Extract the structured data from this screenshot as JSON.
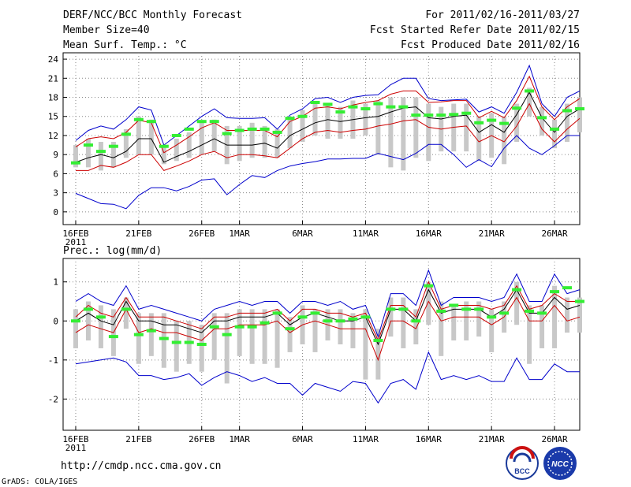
{
  "header": {
    "title": "DERF/NCC/BCC Monthly Forecast",
    "member_size": "Member Size=40",
    "variable": "Mean Surf. Temp.: °C",
    "period": "For 2011/02/16-2011/03/27",
    "started": "Fcst Started Refer Date 2011/02/15",
    "produced": "Fcst Produced Date 2011/02/16"
  },
  "footer": {
    "url": "http://cmdp.ncc.cma.gov.cn",
    "grads": "GrADS: COLA/IGES",
    "logo_bcc": "BCC",
    "logo_ncc": "NCC"
  },
  "colors": {
    "max_min": "#0000cc",
    "std": "#cc0000",
    "mean": "#000000",
    "box": "#c8c8c8",
    "marker": "#33ee33",
    "grid": "#888888"
  },
  "chart_data": [
    {
      "type": "line",
      "title": "Mean Surf. Temp.: °C",
      "x_tick_labels": [
        "16FEB",
        "21FEB",
        "26FEB",
        "1MAR",
        "6MAR",
        "11MAR",
        "16MAR",
        "21MAR",
        "26MAR"
      ],
      "x_tick_days": [
        0,
        5,
        10,
        13,
        18,
        23,
        28,
        33,
        38
      ],
      "x_year_label": "2011",
      "xlim": [
        -1,
        40
      ],
      "ylim": [
        -2,
        25
      ],
      "y_ticks": [
        0,
        3,
        6,
        9,
        12,
        15,
        18,
        21,
        24
      ],
      "series": [
        {
          "name": "max",
          "values": [
            11.2,
            12.8,
            13.5,
            13.0,
            14.5,
            16.5,
            16.0,
            10.5,
            12.0,
            13.5,
            15.0,
            16.2,
            14.8,
            14.7,
            14.7,
            14.8,
            13.0,
            15.2,
            16.2,
            17.8,
            18.0,
            17.2,
            18.0,
            18.3,
            18.4,
            20.0,
            21.0,
            21.0,
            17.8,
            17.5,
            17.6,
            17.7,
            15.7,
            16.5,
            15.5,
            18.8,
            23.0,
            17.0,
            15.0,
            18.0,
            19.0
          ]
        },
        {
          "name": "upper",
          "values": [
            10.2,
            11.5,
            11.8,
            11.5,
            12.5,
            14.4,
            14.0,
            9.3,
            10.5,
            11.8,
            13.2,
            14.0,
            12.8,
            12.8,
            12.8,
            12.8,
            11.8,
            14.2,
            15.0,
            16.3,
            16.5,
            16.2,
            16.8,
            17.2,
            17.5,
            18.5,
            19.0,
            19.0,
            17.2,
            17.3,
            17.5,
            17.5,
            14.8,
            15.8,
            14.8,
            17.5,
            21.3,
            16.5,
            14.5,
            16.5,
            17.8
          ]
        },
        {
          "name": "mean",
          "values": [
            7.8,
            8.5,
            9.0,
            8.5,
            9.5,
            11.5,
            11.5,
            7.8,
            8.7,
            9.5,
            10.5,
            11.5,
            10.5,
            10.5,
            10.5,
            10.8,
            10.0,
            12.0,
            13.0,
            14.0,
            14.5,
            14.2,
            14.5,
            14.8,
            15.0,
            15.7,
            16.3,
            16.5,
            14.8,
            14.6,
            15.0,
            15.2,
            12.5,
            13.7,
            12.5,
            15.3,
            18.8,
            14.8,
            12.5,
            15.0,
            16.2
          ]
        },
        {
          "name": "lower",
          "values": [
            6.5,
            6.5,
            7.3,
            7.0,
            7.8,
            9.0,
            9.0,
            6.5,
            7.2,
            8.0,
            9.0,
            9.5,
            8.5,
            9.0,
            9.0,
            8.8,
            8.5,
            10.0,
            11.5,
            12.5,
            12.8,
            12.5,
            12.8,
            13.0,
            13.5,
            13.8,
            14.3,
            14.5,
            13.3,
            13.0,
            13.3,
            13.5,
            11.0,
            12.0,
            11.0,
            13.5,
            17.0,
            13.0,
            11.0,
            13.0,
            14.7
          ]
        },
        {
          "name": "min",
          "values": [
            2.9,
            2.1,
            1.3,
            1.2,
            0.5,
            2.6,
            3.8,
            3.8,
            3.3,
            4.0,
            5.0,
            5.2,
            2.7,
            4.3,
            5.7,
            5.4,
            6.5,
            7.2,
            7.6,
            7.9,
            8.3,
            8.3,
            8.4,
            8.4,
            9.2,
            8.7,
            8.2,
            9.2,
            10.6,
            10.6,
            9.0,
            7.0,
            8.2,
            7.1,
            10.0,
            12.0,
            10.0,
            9.0,
            10.4,
            12.0,
            12.0
          ]
        },
        {
          "name": "median_marker",
          "values": [
            7.7,
            10.5,
            9.5,
            10.3,
            12.2,
            14.5,
            14.2,
            10.3,
            12.0,
            13.0,
            14.2,
            14.2,
            12.3,
            12.8,
            13.0,
            13.0,
            12.5,
            14.7,
            15.0,
            17.2,
            16.9,
            15.7,
            16.5,
            16.2,
            17.0,
            16.5,
            16.5,
            15.2,
            15.2,
            15.2,
            15.3,
            15.5,
            14.0,
            14.4,
            13.9,
            16.3,
            19.0,
            14.8,
            13.0,
            15.9,
            16.2
          ]
        },
        {
          "name": "box_high",
          "values": [
            10.5,
            11.5,
            11.0,
            11.0,
            13.0,
            15.0,
            14.5,
            10.5,
            11.5,
            12.5,
            14.0,
            14.5,
            13.5,
            13.5,
            14.0,
            13.5,
            13.0,
            15.0,
            16.0,
            17.0,
            17.0,
            16.5,
            17.5,
            17.0,
            17.5,
            18.0,
            18.0,
            18.0,
            17.0,
            16.5,
            17.0,
            17.0,
            15.0,
            15.5,
            15.0,
            17.0,
            19.5,
            16.5,
            14.5,
            17.0,
            18.0
          ]
        },
        {
          "name": "box_low",
          "values": [
            7.0,
            7.0,
            6.5,
            7.0,
            8.5,
            9.0,
            9.0,
            7.5,
            8.0,
            8.5,
            9.0,
            9.5,
            7.5,
            8.0,
            8.5,
            8.5,
            8.5,
            10.0,
            11.0,
            12.0,
            11.5,
            11.5,
            11.5,
            12.0,
            9.0,
            7.0,
            6.5,
            8.5,
            8.0,
            9.5,
            9.5,
            9.5,
            8.0,
            8.5,
            7.5,
            11.0,
            15.0,
            12.0,
            10.0,
            11.0,
            12.5
          ]
        }
      ]
    },
    {
      "type": "line",
      "title": "Prec.: log(mm/d)",
      "x_tick_labels": [
        "16FEB",
        "21FEB",
        "26FEB",
        "1MAR",
        "6MAR",
        "11MAR",
        "16MAR",
        "21MAR",
        "26MAR"
      ],
      "x_tick_days": [
        0,
        5,
        10,
        13,
        18,
        23,
        28,
        33,
        38
      ],
      "x_year_label": "2011",
      "xlim": [
        -1,
        40
      ],
      "ylim": [
        -2.8,
        1.6
      ],
      "y_ticks": [
        -2,
        -1,
        0,
        1
      ],
      "series": [
        {
          "name": "max",
          "values": [
            0.5,
            0.7,
            0.5,
            0.4,
            0.9,
            0.3,
            0.4,
            0.3,
            0.2,
            0.1,
            0.0,
            0.3,
            0.4,
            0.5,
            0.4,
            0.5,
            0.5,
            0.2,
            0.5,
            0.5,
            0.4,
            0.5,
            0.3,
            0.4,
            -0.4,
            0.7,
            0.7,
            0.4,
            1.3,
            0.4,
            0.6,
            0.6,
            0.6,
            0.5,
            0.6,
            1.2,
            0.5,
            0.5,
            1.2,
            0.7,
            0.8
          ]
        },
        {
          "name": "upper",
          "values": [
            0.1,
            0.4,
            0.2,
            0.1,
            0.6,
            0.1,
            0.1,
            0.1,
            0.0,
            -0.1,
            -0.2,
            0.1,
            0.1,
            0.2,
            0.2,
            0.2,
            0.3,
            0.0,
            0.3,
            0.3,
            0.2,
            0.2,
            0.1,
            0.2,
            -0.5,
            0.4,
            0.4,
            0.1,
            1.0,
            0.3,
            0.4,
            0.4,
            0.4,
            0.3,
            0.4,
            0.9,
            0.3,
            0.4,
            0.7,
            0.5,
            0.5
          ]
        },
        {
          "name": "mean",
          "values": [
            0.0,
            0.2,
            0.0,
            -0.1,
            0.5,
            0.0,
            0.0,
            -0.1,
            -0.1,
            -0.2,
            -0.3,
            0.0,
            0.0,
            0.1,
            0.1,
            0.1,
            0.2,
            -0.1,
            0.1,
            0.2,
            0.1,
            0.0,
            0.0,
            0.1,
            -0.6,
            0.3,
            0.3,
            0.0,
            0.8,
            0.2,
            0.3,
            0.3,
            0.3,
            0.1,
            0.3,
            0.8,
            0.2,
            0.2,
            0.6,
            0.3,
            0.4
          ]
        },
        {
          "name": "lower",
          "values": [
            -0.3,
            -0.1,
            -0.2,
            -0.3,
            0.3,
            -0.3,
            -0.2,
            -0.3,
            -0.3,
            -0.4,
            -0.5,
            -0.2,
            -0.2,
            -0.1,
            -0.1,
            -0.1,
            0.0,
            -0.3,
            -0.1,
            0.0,
            -0.1,
            -0.2,
            -0.2,
            -0.2,
            -1.0,
            0.0,
            0.0,
            -0.2,
            0.5,
            0.0,
            0.1,
            0.1,
            0.1,
            -0.1,
            0.1,
            0.6,
            0.0,
            0.0,
            0.4,
            0.0,
            0.1
          ]
        },
        {
          "name": "min",
          "values": [
            -1.1,
            -1.05,
            -1.0,
            -0.95,
            -1.05,
            -1.4,
            -1.4,
            -1.5,
            -1.45,
            -1.35,
            -1.65,
            -1.45,
            -1.3,
            -1.4,
            -1.55,
            -1.45,
            -1.6,
            -1.6,
            -1.9,
            -1.6,
            -1.7,
            -1.8,
            -1.55,
            -1.6,
            -2.1,
            -1.6,
            -1.5,
            -1.75,
            -0.8,
            -1.5,
            -1.4,
            -1.5,
            -1.4,
            -1.55,
            -1.55,
            -0.95,
            -1.5,
            -1.5,
            -1.1,
            -1.3,
            -1.3
          ]
        },
        {
          "name": "median_marker",
          "values": [
            0.0,
            0.3,
            0.1,
            -0.4,
            0.3,
            -0.35,
            -0.25,
            -0.45,
            -0.55,
            -0.55,
            -0.6,
            -0.15,
            -0.35,
            -0.15,
            -0.15,
            -0.05,
            0.2,
            -0.2,
            0.1,
            0.2,
            0.0,
            0.0,
            0.05,
            0.1,
            -0.5,
            0.3,
            0.3,
            0.0,
            0.9,
            0.25,
            0.4,
            0.3,
            0.3,
            0.1,
            0.2,
            0.8,
            0.25,
            0.2,
            0.75,
            0.85,
            0.5
          ]
        },
        {
          "name": "box_high",
          "values": [
            0.3,
            0.5,
            0.4,
            0.3,
            0.6,
            0.2,
            0.2,
            0.2,
            0.0,
            0.0,
            -0.1,
            0.2,
            0.2,
            0.3,
            0.3,
            0.3,
            0.3,
            0.1,
            0.4,
            0.3,
            0.3,
            0.3,
            0.2,
            0.3,
            -0.2,
            0.6,
            0.6,
            0.3,
            1.0,
            0.5,
            0.4,
            0.5,
            0.5,
            0.3,
            0.5,
            1.0,
            0.4,
            0.4,
            0.9,
            0.6,
            0.6
          ]
        },
        {
          "name": "box_low",
          "values": [
            -0.7,
            -0.5,
            -0.7,
            -0.9,
            -0.2,
            -1.1,
            -0.9,
            -1.2,
            -1.3,
            -1.1,
            -1.3,
            -1.0,
            -1.6,
            -0.9,
            -1.1,
            -1.1,
            -1.2,
            -0.8,
            -0.6,
            -0.8,
            -0.5,
            -0.6,
            -0.7,
            -1.5,
            -1.5,
            -0.4,
            -0.7,
            -0.6,
            -0.1,
            -0.9,
            -0.5,
            -0.5,
            -0.4,
            -0.8,
            -0.3,
            -0.1,
            -1.1,
            -0.7,
            -0.7,
            -0.3,
            -0.3
          ]
        }
      ]
    }
  ]
}
